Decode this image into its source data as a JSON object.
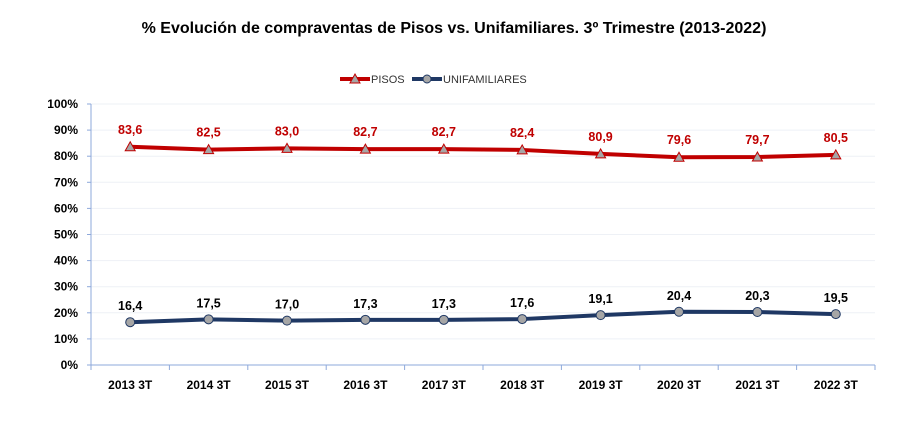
{
  "chart_data": {
    "type": "line",
    "title": "% Evolución de compraventas de Pisos vs. Unifamiliares.  3º  Trimestre (2013-2022)",
    "categories": [
      "2013 3T",
      "2014 3T",
      "2015 3T",
      "2016 3T",
      "2017 3T",
      "2018 3T",
      "2019 3T",
      "2020 3T",
      "2021 3T",
      "2022 3T"
    ],
    "ylim": [
      0,
      100
    ],
    "yticks": [
      "0%",
      "10%",
      "20%",
      "30%",
      "40%",
      "50%",
      "60%",
      "70%",
      "80%",
      "90%",
      "100%"
    ],
    "grid": true,
    "legend": "top-center",
    "series": [
      {
        "name": "PISOS",
        "color": "#C00000",
        "marker": "triangle",
        "values": [
          83.6,
          82.5,
          83.0,
          82.7,
          82.7,
          82.4,
          80.9,
          79.6,
          79.7,
          80.5
        ],
        "labels": [
          "83,6",
          "82,5",
          "83,0",
          "82,7",
          "82,7",
          "82,4",
          "80,9",
          "79,6",
          "79,7",
          "80,5"
        ]
      },
      {
        "name": "UNIFAMILIARES",
        "color": "#1F3864",
        "marker": "circle",
        "values": [
          16.4,
          17.5,
          17.0,
          17.3,
          17.3,
          17.6,
          19.1,
          20.4,
          20.3,
          19.5
        ],
        "labels": [
          "16,4",
          "17,5",
          "17,0",
          "17,3",
          "17,3",
          "17,6",
          "19,1",
          "20,4",
          "20,3",
          "19,5"
        ]
      }
    ]
  }
}
